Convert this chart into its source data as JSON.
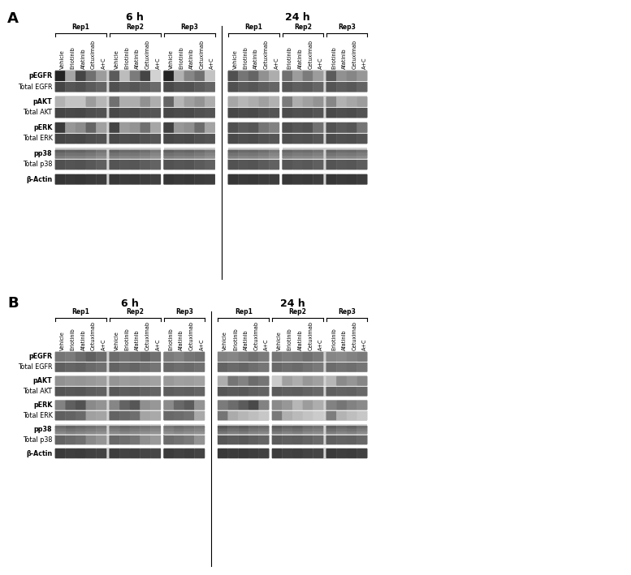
{
  "fig_width": 7.77,
  "fig_height": 7.09,
  "background_color": "#ffffff",
  "row_labels_A": [
    "pEGFR",
    "Total EGFR",
    "pAKT",
    "Total AKT",
    "pERK",
    "Total ERK",
    "pp38",
    "Total p38",
    "β-Actin"
  ],
  "row_labels_B": [
    "pEGFR",
    "Total EGFR",
    "pAKT",
    "Total AKT",
    "pERK",
    "Total ERK",
    "pp38",
    "Total p38",
    "β-Actin"
  ],
  "col_treatments_5": [
    "Vehicle",
    "Erlotinib",
    "Afatinib",
    "Cetuximab",
    "A+C"
  ],
  "col_treatments_4": [
    "Erlotinib",
    "Afatinib",
    "Cetuximab",
    "A+C"
  ],
  "rep_names": [
    "Rep1",
    "Rep2",
    "Rep3"
  ],
  "panel_labels": [
    "A",
    "B"
  ],
  "time_labels": [
    "6 h",
    "24 h"
  ],
  "band_color_light": "#c8c8c8",
  "band_color_mid": "#909090",
  "band_color_dark": "#282828",
  "bg_color": "#d8d8d8",
  "bg_color2": "#e0e0e0"
}
